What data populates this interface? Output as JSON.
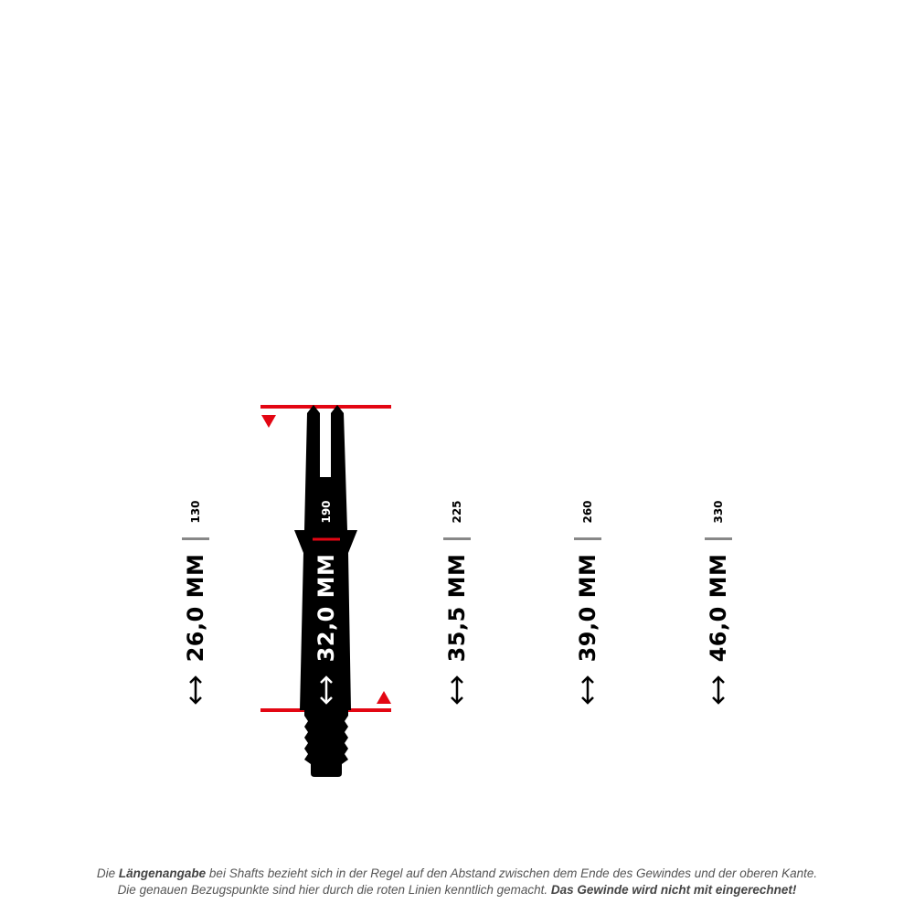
{
  "colors": {
    "red": "#e30613",
    "black": "#000000",
    "gray": "#888888"
  },
  "shafts": [
    {
      "code": "130",
      "length": "26,0 MM"
    },
    {
      "code": "190",
      "length": "32,0 MM"
    },
    {
      "code": "225",
      "length": "35,5 MM"
    },
    {
      "code": "260",
      "length": "39,0 MM"
    },
    {
      "code": "330",
      "length": "46,0 MM"
    }
  ],
  "caption": {
    "line1": {
      "a": "Die ",
      "b": "Längenangabe",
      "c": " bei Shafts bezieht sich in der Regel auf den Abstand zwischen dem Ende des Gewindes und der oberen Kante."
    },
    "line2": {
      "a": "Die genauen Bezugspunkte sind hier durch die roten Linien kenntlich gemacht. ",
      "b": "Das Gewinde wird nicht mit eingerechnet!"
    }
  }
}
